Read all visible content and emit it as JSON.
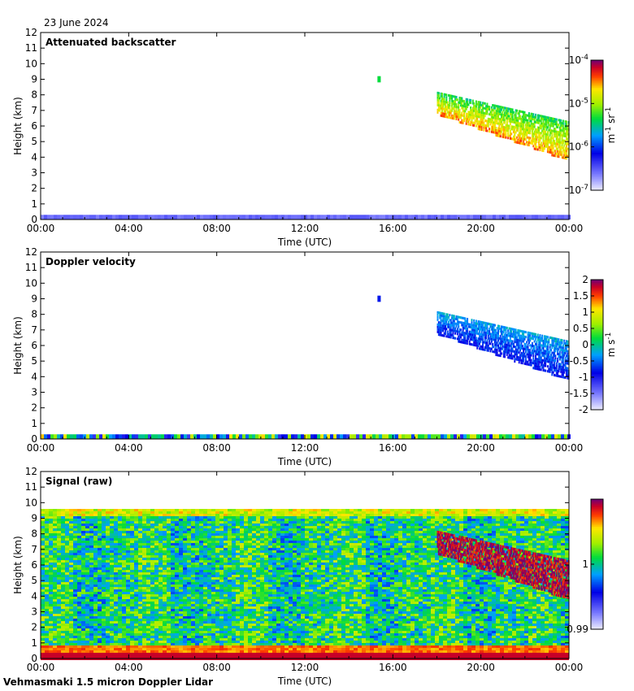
{
  "date": "23 June 2024",
  "footer": "Vehmasmaki 1.5 micron Doppler Lidar",
  "chart_data": [
    {
      "type": "heatmap",
      "title": "Attenuated backscatter",
      "xlabel": "Time (UTC)",
      "ylabel": "Height (km)",
      "ylim": [
        0,
        12
      ],
      "x_ticks": [
        "00:00",
        "04:00",
        "08:00",
        "12:00",
        "16:00",
        "20:00",
        "00:00"
      ],
      "y_ticks": [
        "0",
        "1",
        "2",
        "3",
        "4",
        "5",
        "6",
        "7",
        "8",
        "9",
        "10",
        "11",
        "12"
      ],
      "colorbar": {
        "label_parts": [
          "m",
          "-1",
          " sr",
          "-1"
        ],
        "scale": "log",
        "range": [
          1e-07,
          0.0001
        ],
        "ticks": [
          {
            "base": "10",
            "exp": "-4",
            "v": -4
          },
          {
            "base": "10",
            "exp": "-5",
            "v": -5
          },
          {
            "base": "10",
            "exp": "-6",
            "v": -6
          },
          {
            "base": "10",
            "exp": "-7",
            "v": -7
          }
        ]
      },
      "features": [
        {
          "start_h": 15.3,
          "end_h": 15.45,
          "bottom_km": 8.8,
          "top_km": 9.2,
          "level": 0.55
        },
        {
          "start_h": 18.0,
          "end_h": 24.0,
          "bottom_start_km": 6.8,
          "bottom_end_km": 3.8,
          "top_start_km": 8.2,
          "top_end_km": 6.3,
          "level": 0.6
        }
      ],
      "surface_layer_top_km": 0.3
    },
    {
      "type": "heatmap",
      "title": "Doppler velocity",
      "xlabel": "Time (UTC)",
      "ylabel": "Height (km)",
      "ylim": [
        0,
        12
      ],
      "x_ticks": [
        "00:00",
        "04:00",
        "08:00",
        "12:00",
        "16:00",
        "20:00",
        "00:00"
      ],
      "y_ticks": [
        "0",
        "1",
        "2",
        "3",
        "4",
        "5",
        "6",
        "7",
        "8",
        "9",
        "10",
        "11",
        "12"
      ],
      "colorbar": {
        "label_parts": [
          "m",
          "",
          " s",
          "-1"
        ],
        "scale": "linear",
        "range": [
          -2,
          2
        ],
        "ticks": [
          {
            "label": "2",
            "v": 2
          },
          {
            "label": "1.5",
            "v": 1.5
          },
          {
            "label": "1",
            "v": 1
          },
          {
            "label": "0.5",
            "v": 0.5
          },
          {
            "label": "0",
            "v": 0
          },
          {
            "label": "-0.5",
            "v": -0.5
          },
          {
            "label": "-1",
            "v": -1
          },
          {
            "label": "-1.5",
            "v": -1.5
          },
          {
            "label": "-2",
            "v": -2
          }
        ]
      },
      "features": [
        {
          "start_h": 15.3,
          "end_h": 15.45,
          "bottom_km": 8.8,
          "top_km": 9.2,
          "level": 0.3
        },
        {
          "start_h": 18.0,
          "end_h": 24.0,
          "bottom_start_km": 6.8,
          "bottom_end_km": 3.8,
          "top_start_km": 8.2,
          "top_end_km": 6.3,
          "level": 0.3
        }
      ],
      "surface_layer_top_km": 0.3
    },
    {
      "type": "heatmap",
      "title": "Signal (raw)",
      "xlabel": "Time (UTC)",
      "ylabel": "Height (km)",
      "ylim": [
        0,
        12
      ],
      "x_ticks": [
        "00:00",
        "04:00",
        "08:00",
        "12:00",
        "16:00",
        "20:00",
        "00:00"
      ],
      "y_ticks": [
        "0",
        "1",
        "2",
        "3",
        "4",
        "5",
        "6",
        "7",
        "8",
        "9",
        "10",
        "11",
        "12"
      ],
      "colorbar": {
        "label_parts": [
          "",
          "",
          "",
          ""
        ],
        "scale": "linear",
        "range": [
          0.99,
          1.01
        ],
        "ticks": [
          {
            "label": "1",
            "v": 1.0
          },
          {
            "label": "0.99",
            "v": 0.99
          }
        ]
      },
      "data_top_km": 9.6,
      "features": [
        {
          "start_h": 18.0,
          "end_h": 24.0,
          "bottom_start_km": 6.8,
          "bottom_end_km": 3.8,
          "top_start_km": 8.2,
          "top_end_km": 6.3,
          "level": 0.97
        }
      ],
      "surface_layer_top_km": 0.4
    }
  ]
}
